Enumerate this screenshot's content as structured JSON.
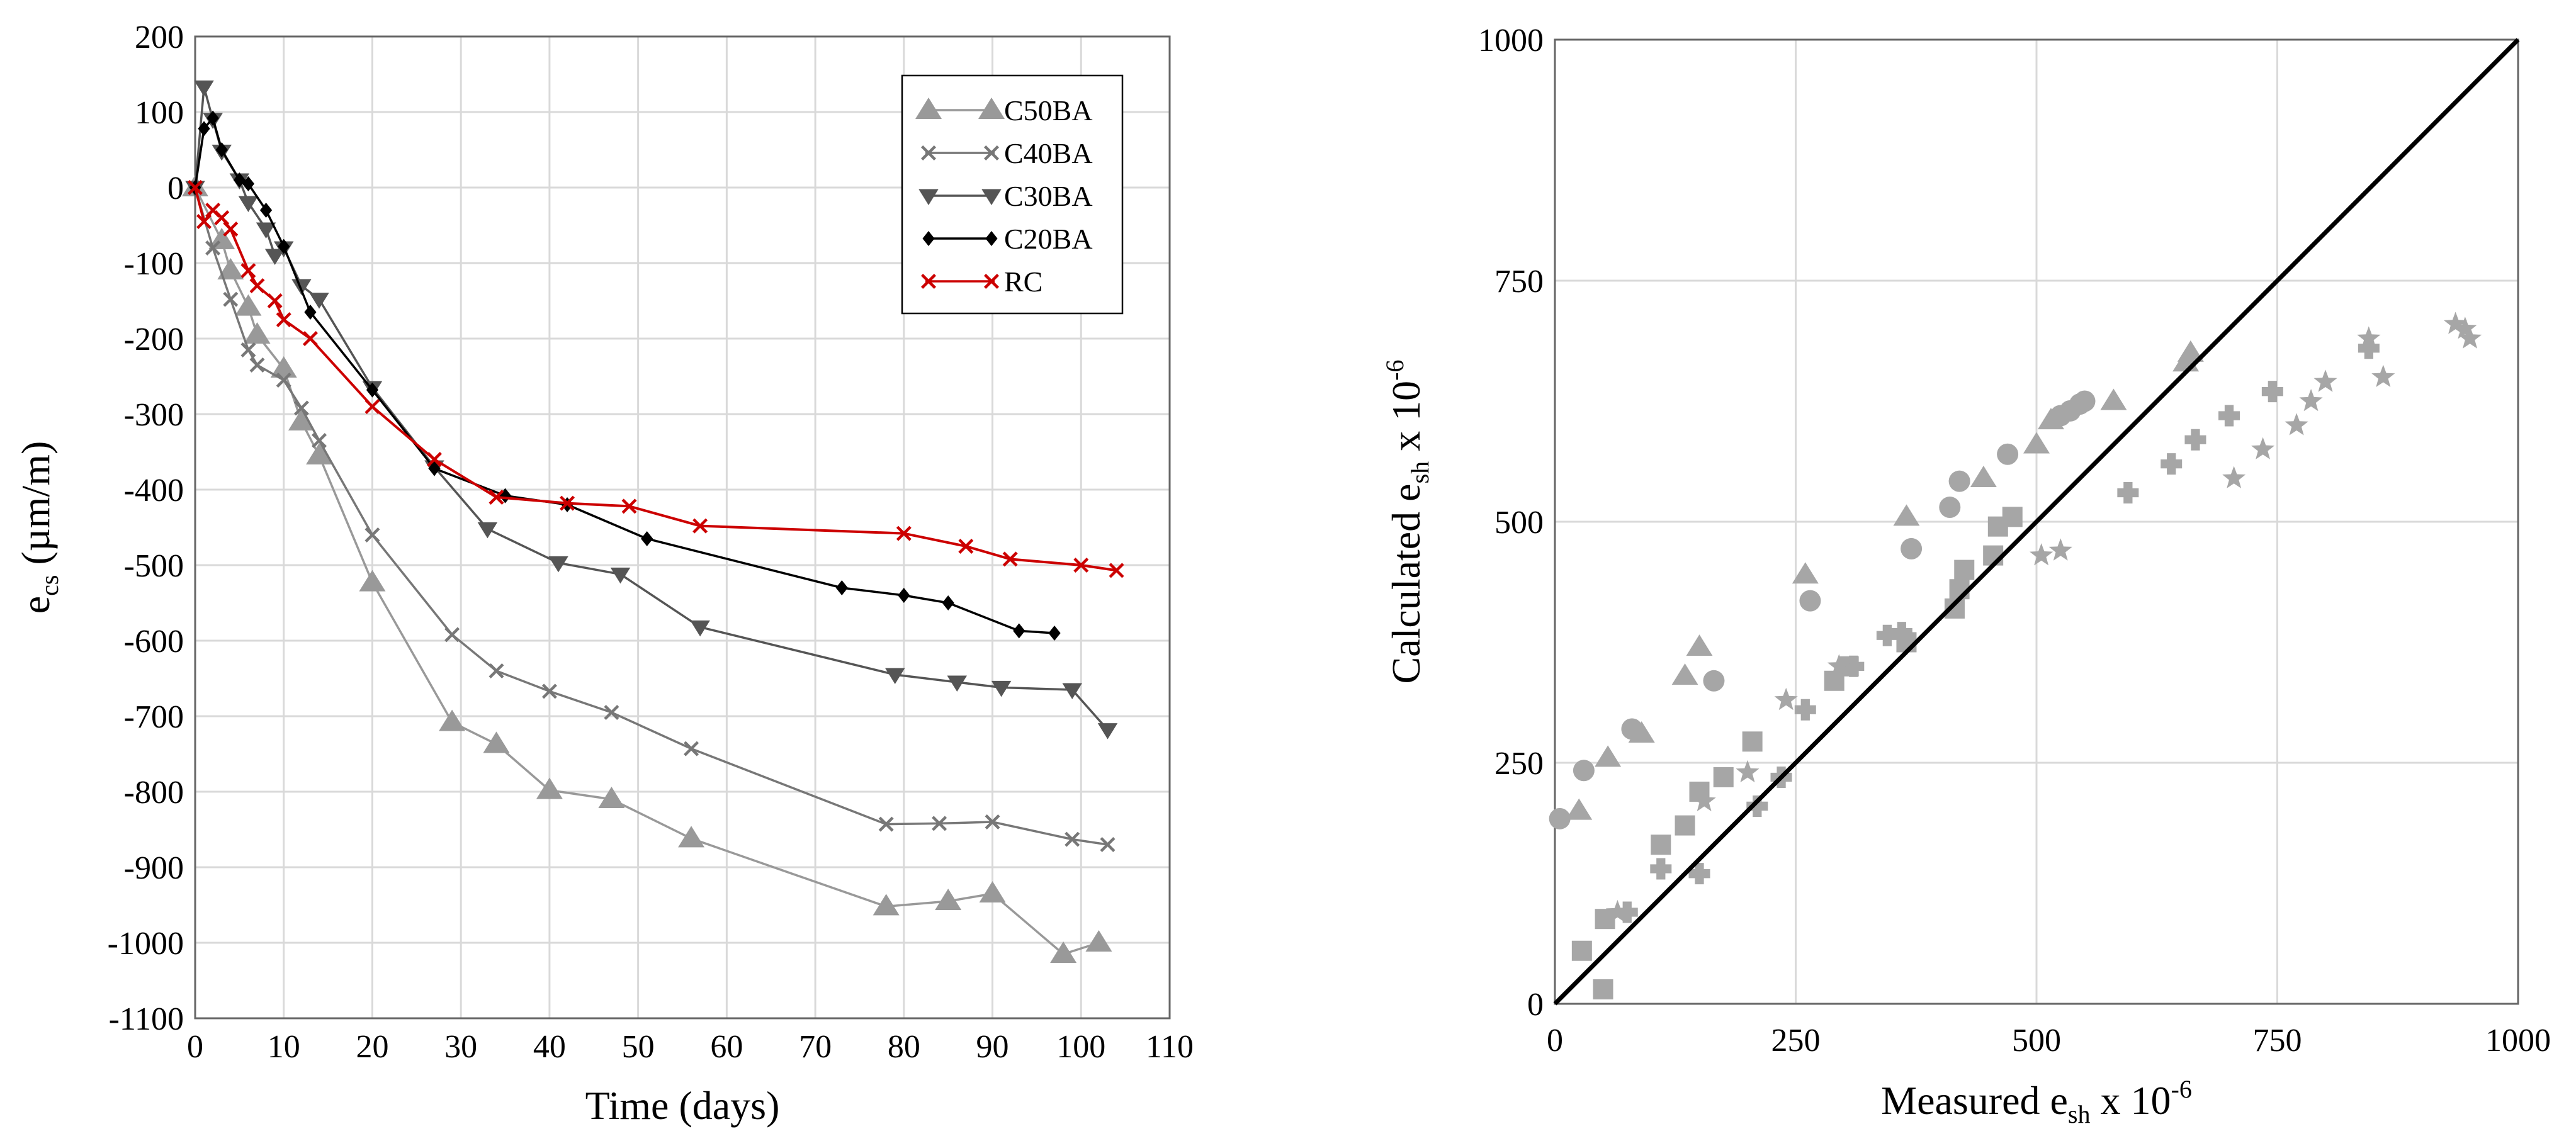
{
  "chart_data": [
    {
      "type": "line",
      "title": "",
      "xlabel": "Time (days)",
      "ylabel": {
        "main": "e",
        "sub": "cs",
        "rest": " (µm/m)"
      },
      "xlim": [
        0,
        110
      ],
      "ylim": [
        -1100,
        200
      ],
      "x_ticks": [
        0,
        10,
        20,
        30,
        40,
        50,
        60,
        70,
        80,
        90,
        100,
        110
      ],
      "y_ticks": [
        200,
        100,
        0,
        -100,
        -200,
        -300,
        -400,
        -500,
        -600,
        -700,
        -800,
        -900,
        -1000,
        -1100
      ],
      "grid": true,
      "legend_position": "top-right",
      "series": [
        {
          "name": "C50BA",
          "color": "#999999",
          "marker": "triangle",
          "x": [
            0,
            3,
            4,
            6,
            7,
            10,
            12,
            14,
            20,
            29,
            34,
            40,
            47,
            56,
            78,
            85,
            90,
            98,
            102
          ],
          "y": [
            0,
            -70,
            -110,
            -158,
            -195,
            -240,
            -310,
            -355,
            -523,
            -708,
            -737,
            -798,
            -810,
            -862,
            -952,
            -945,
            -935,
            -1015,
            -1000
          ]
        },
        {
          "name": "C40BA",
          "color": "#777777",
          "marker": "x",
          "x": [
            0,
            2,
            4,
            6,
            7,
            10,
            12,
            14,
            20,
            29,
            34,
            40,
            47,
            56,
            78,
            84,
            90,
            99,
            103
          ],
          "y": [
            0,
            -80,
            -148,
            -215,
            -235,
            -255,
            -292,
            -335,
            -460,
            -592,
            -640,
            -667,
            -695,
            -743,
            -843,
            -842,
            -840,
            -863,
            -870
          ]
        },
        {
          "name": "C30BA",
          "color": "#555555",
          "marker": "triangle-down",
          "x": [
            0,
            1,
            2,
            3,
            5,
            6,
            8,
            9,
            10,
            12,
            14,
            20,
            27,
            33,
            41,
            48,
            57,
            79,
            86,
            91,
            99,
            103
          ],
          "y": [
            0,
            133,
            90,
            48,
            10,
            -20,
            -55,
            -90,
            -80,
            -130,
            -148,
            -265,
            -370,
            -452,
            -497,
            -512,
            -582,
            -645,
            -655,
            -662,
            -665,
            -718
          ]
        },
        {
          "name": "C20BA",
          "color": "#000000",
          "marker": "diamond",
          "x": [
            0,
            1,
            2,
            3,
            5,
            6,
            8,
            10,
            13,
            20,
            27,
            35,
            42,
            51,
            73,
            80,
            85,
            93,
            97
          ],
          "y": [
            0,
            78,
            92,
            50,
            10,
            5,
            -30,
            -78,
            -165,
            -268,
            -372,
            -408,
            -420,
            -465,
            -530,
            -540,
            -550,
            -587,
            -590
          ]
        },
        {
          "name": "RC",
          "color": "#cc0000",
          "marker": "x",
          "x": [
            0,
            1,
            2,
            3,
            4,
            6,
            7,
            9,
            10,
            13,
            20,
            27,
            34,
            42,
            49,
            57,
            80,
            87,
            92,
            100,
            104
          ],
          "y": [
            0,
            -45,
            -30,
            -40,
            -55,
            -110,
            -130,
            -150,
            -175,
            -200,
            -290,
            -360,
            -410,
            -418,
            -422,
            -448,
            -458,
            -475,
            -492,
            -500,
            -507
          ]
        }
      ]
    },
    {
      "type": "scatter",
      "title": "",
      "xlabel": {
        "main": "Measured e",
        "sub": "sh",
        "rest": " x 10",
        "sup": "-6"
      },
      "ylabel": {
        "main": "Calculated e",
        "sub": "sh",
        "rest": " x 10",
        "sup": "-6"
      },
      "xlim": [
        0,
        1000
      ],
      "ylim": [
        0,
        1000
      ],
      "x_ticks": [
        0,
        250,
        500,
        750,
        1000
      ],
      "y_ticks": [
        0,
        250,
        500,
        750,
        1000
      ],
      "grid": true,
      "reference_line": "y = x",
      "series": [
        {
          "name": "triangles",
          "color": "#a6a6a6",
          "marker": "triangle",
          "x": [
            25,
            55,
            90,
            135,
            150,
            260,
            365,
            445,
            500,
            515,
            580,
            655,
            660
          ],
          "y": [
            200,
            255,
            280,
            340,
            370,
            445,
            505,
            545,
            580,
            605,
            625,
            665,
            675
          ]
        },
        {
          "name": "circles",
          "color": "#a6a6a6",
          "marker": "circle",
          "x": [
            5,
            30,
            80,
            165,
            265,
            370,
            410,
            420,
            470,
            525,
            535,
            545,
            550
          ],
          "y": [
            192,
            242,
            285,
            335,
            418,
            472,
            515,
            542,
            570,
            610,
            615,
            622,
            625
          ]
        },
        {
          "name": "squares",
          "color": "#a6a6a6",
          "marker": "square",
          "x": [
            28,
            50,
            52,
            110,
            135,
            150,
            175,
            205,
            290,
            305,
            365,
            415,
            420,
            425,
            455,
            460,
            475
          ],
          "y": [
            55,
            15,
            88,
            165,
            185,
            220,
            235,
            272,
            335,
            350,
            375,
            410,
            430,
            450,
            465,
            495,
            505
          ]
        },
        {
          "name": "plus",
          "color": "#a6a6a6",
          "marker": "plus",
          "x": [
            75,
            110,
            150,
            210,
            235,
            260,
            310,
            345,
            360,
            595,
            640,
            665,
            700,
            745,
            845
          ],
          "y": [
            95,
            140,
            135,
            205,
            235,
            305,
            350,
            382,
            385,
            530,
            560,
            585,
            610,
            635,
            680
          ]
        },
        {
          "name": "stars",
          "color": "#a6a6a6",
          "marker": "star",
          "x": [
            65,
            155,
            200,
            240,
            295,
            505,
            525,
            705,
            735,
            770,
            785,
            800,
            845,
            860,
            935,
            945,
            950
          ],
          "y": [
            95,
            210,
            240,
            315,
            350,
            465,
            470,
            545,
            575,
            600,
            625,
            645,
            690,
            650,
            705,
            700,
            690
          ]
        }
      ]
    }
  ]
}
